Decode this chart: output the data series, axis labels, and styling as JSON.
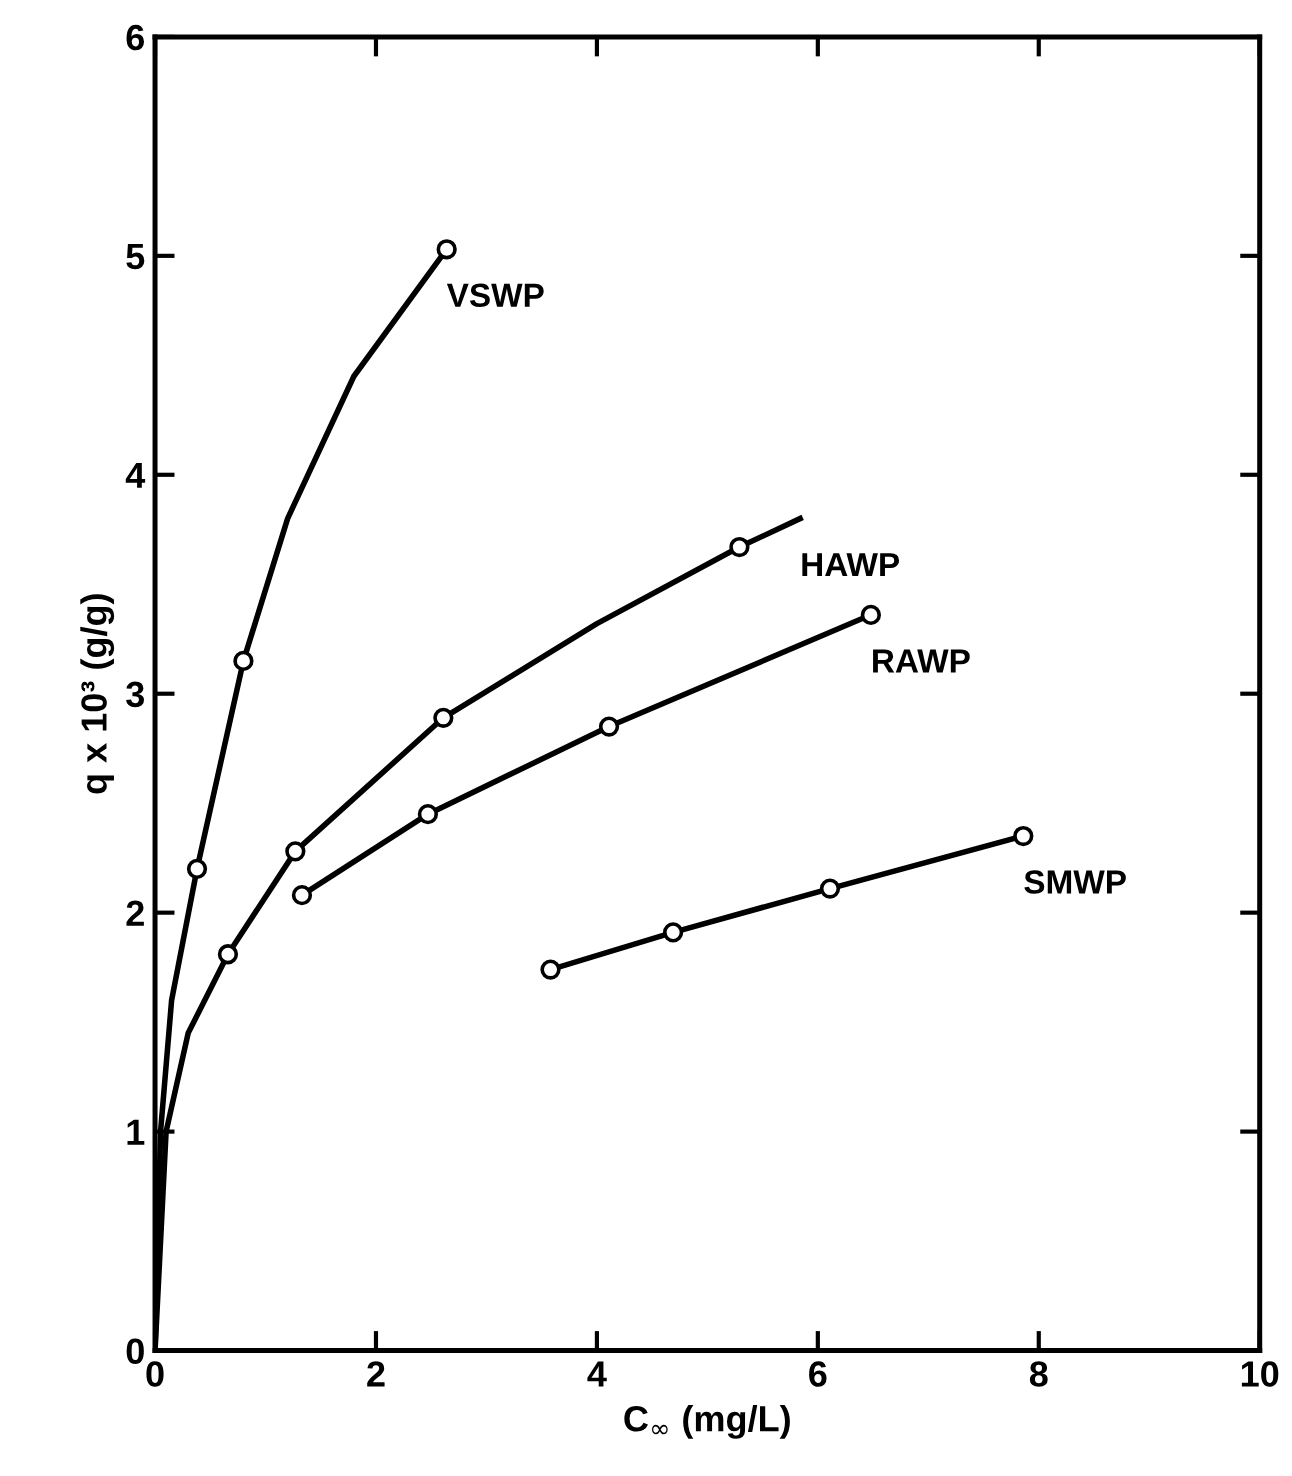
{
  "chart_data": {
    "type": "line",
    "xlabel": "C$_{∞}$ (mg/L)",
    "ylabel": "q x 10³ (g/g)",
    "xlim": [
      0,
      10
    ],
    "ylim": [
      0,
      6
    ],
    "xticks": [
      0,
      2,
      4,
      6,
      8,
      10
    ],
    "yticks": [
      0,
      1,
      2,
      3,
      4,
      5,
      6
    ],
    "grid": false,
    "legend": false,
    "line_style": "solid",
    "series": [
      {
        "name": "VSWP",
        "color": "#000000",
        "marker": "none",
        "x": [
          0,
          0.05,
          0.15,
          0.38,
          0.8,
          1.2,
          1.8,
          2.64
        ],
        "values": [
          0,
          1.0,
          1.6,
          2.2,
          3.15,
          3.8,
          4.45,
          5.03
        ]
      },
      {
        "name": "HAWP",
        "color": "#000000",
        "marker": "none",
        "x": [
          0,
          0.1,
          0.3,
          0.66,
          1.27,
          2.61,
          4.0,
          5.29,
          5.84
        ],
        "values": [
          0,
          1.0,
          1.45,
          1.81,
          2.28,
          2.89,
          3.32,
          3.67,
          3.8
        ]
      },
      {
        "name": "RAWP",
        "color": "#000000",
        "marker": "none",
        "x": [
          1.33,
          2.47,
          4.11,
          6.48
        ],
        "values": [
          2.08,
          2.45,
          2.85,
          3.36
        ]
      },
      {
        "name": "SMWP",
        "color": "#000000",
        "marker": "none",
        "x": [
          3.58,
          4.69,
          6.11,
          7.86
        ],
        "values": [
          1.74,
          1.91,
          2.11,
          2.35
        ]
      },
      {
        "type": "scatter",
        "color": "#000000",
        "marker": "circle",
        "x": [
          0.38,
          0.8,
          2.64
        ],
        "values": [
          2.2,
          3.15,
          5.03
        ]
      },
      {
        "type": "scatter",
        "color": "#000000",
        "marker": "circle",
        "x": [
          0.66,
          1.27,
          2.61,
          5.29
        ],
        "values": [
          1.81,
          2.28,
          2.89,
          3.67
        ]
      },
      {
        "type": "scatter",
        "color": "#000000",
        "marker": "circle",
        "x": [
          1.33,
          2.47,
          4.11,
          6.48
        ],
        "values": [
          2.08,
          2.45,
          2.85,
          3.36
        ]
      },
      {
        "type": "scatter",
        "color": "#000000",
        "marker": "circle",
        "x": [
          3.58,
          4.69,
          6.11,
          7.86
        ],
        "values": [
          1.74,
          1.91,
          2.11,
          2.35
        ]
      }
    ]
  }
}
